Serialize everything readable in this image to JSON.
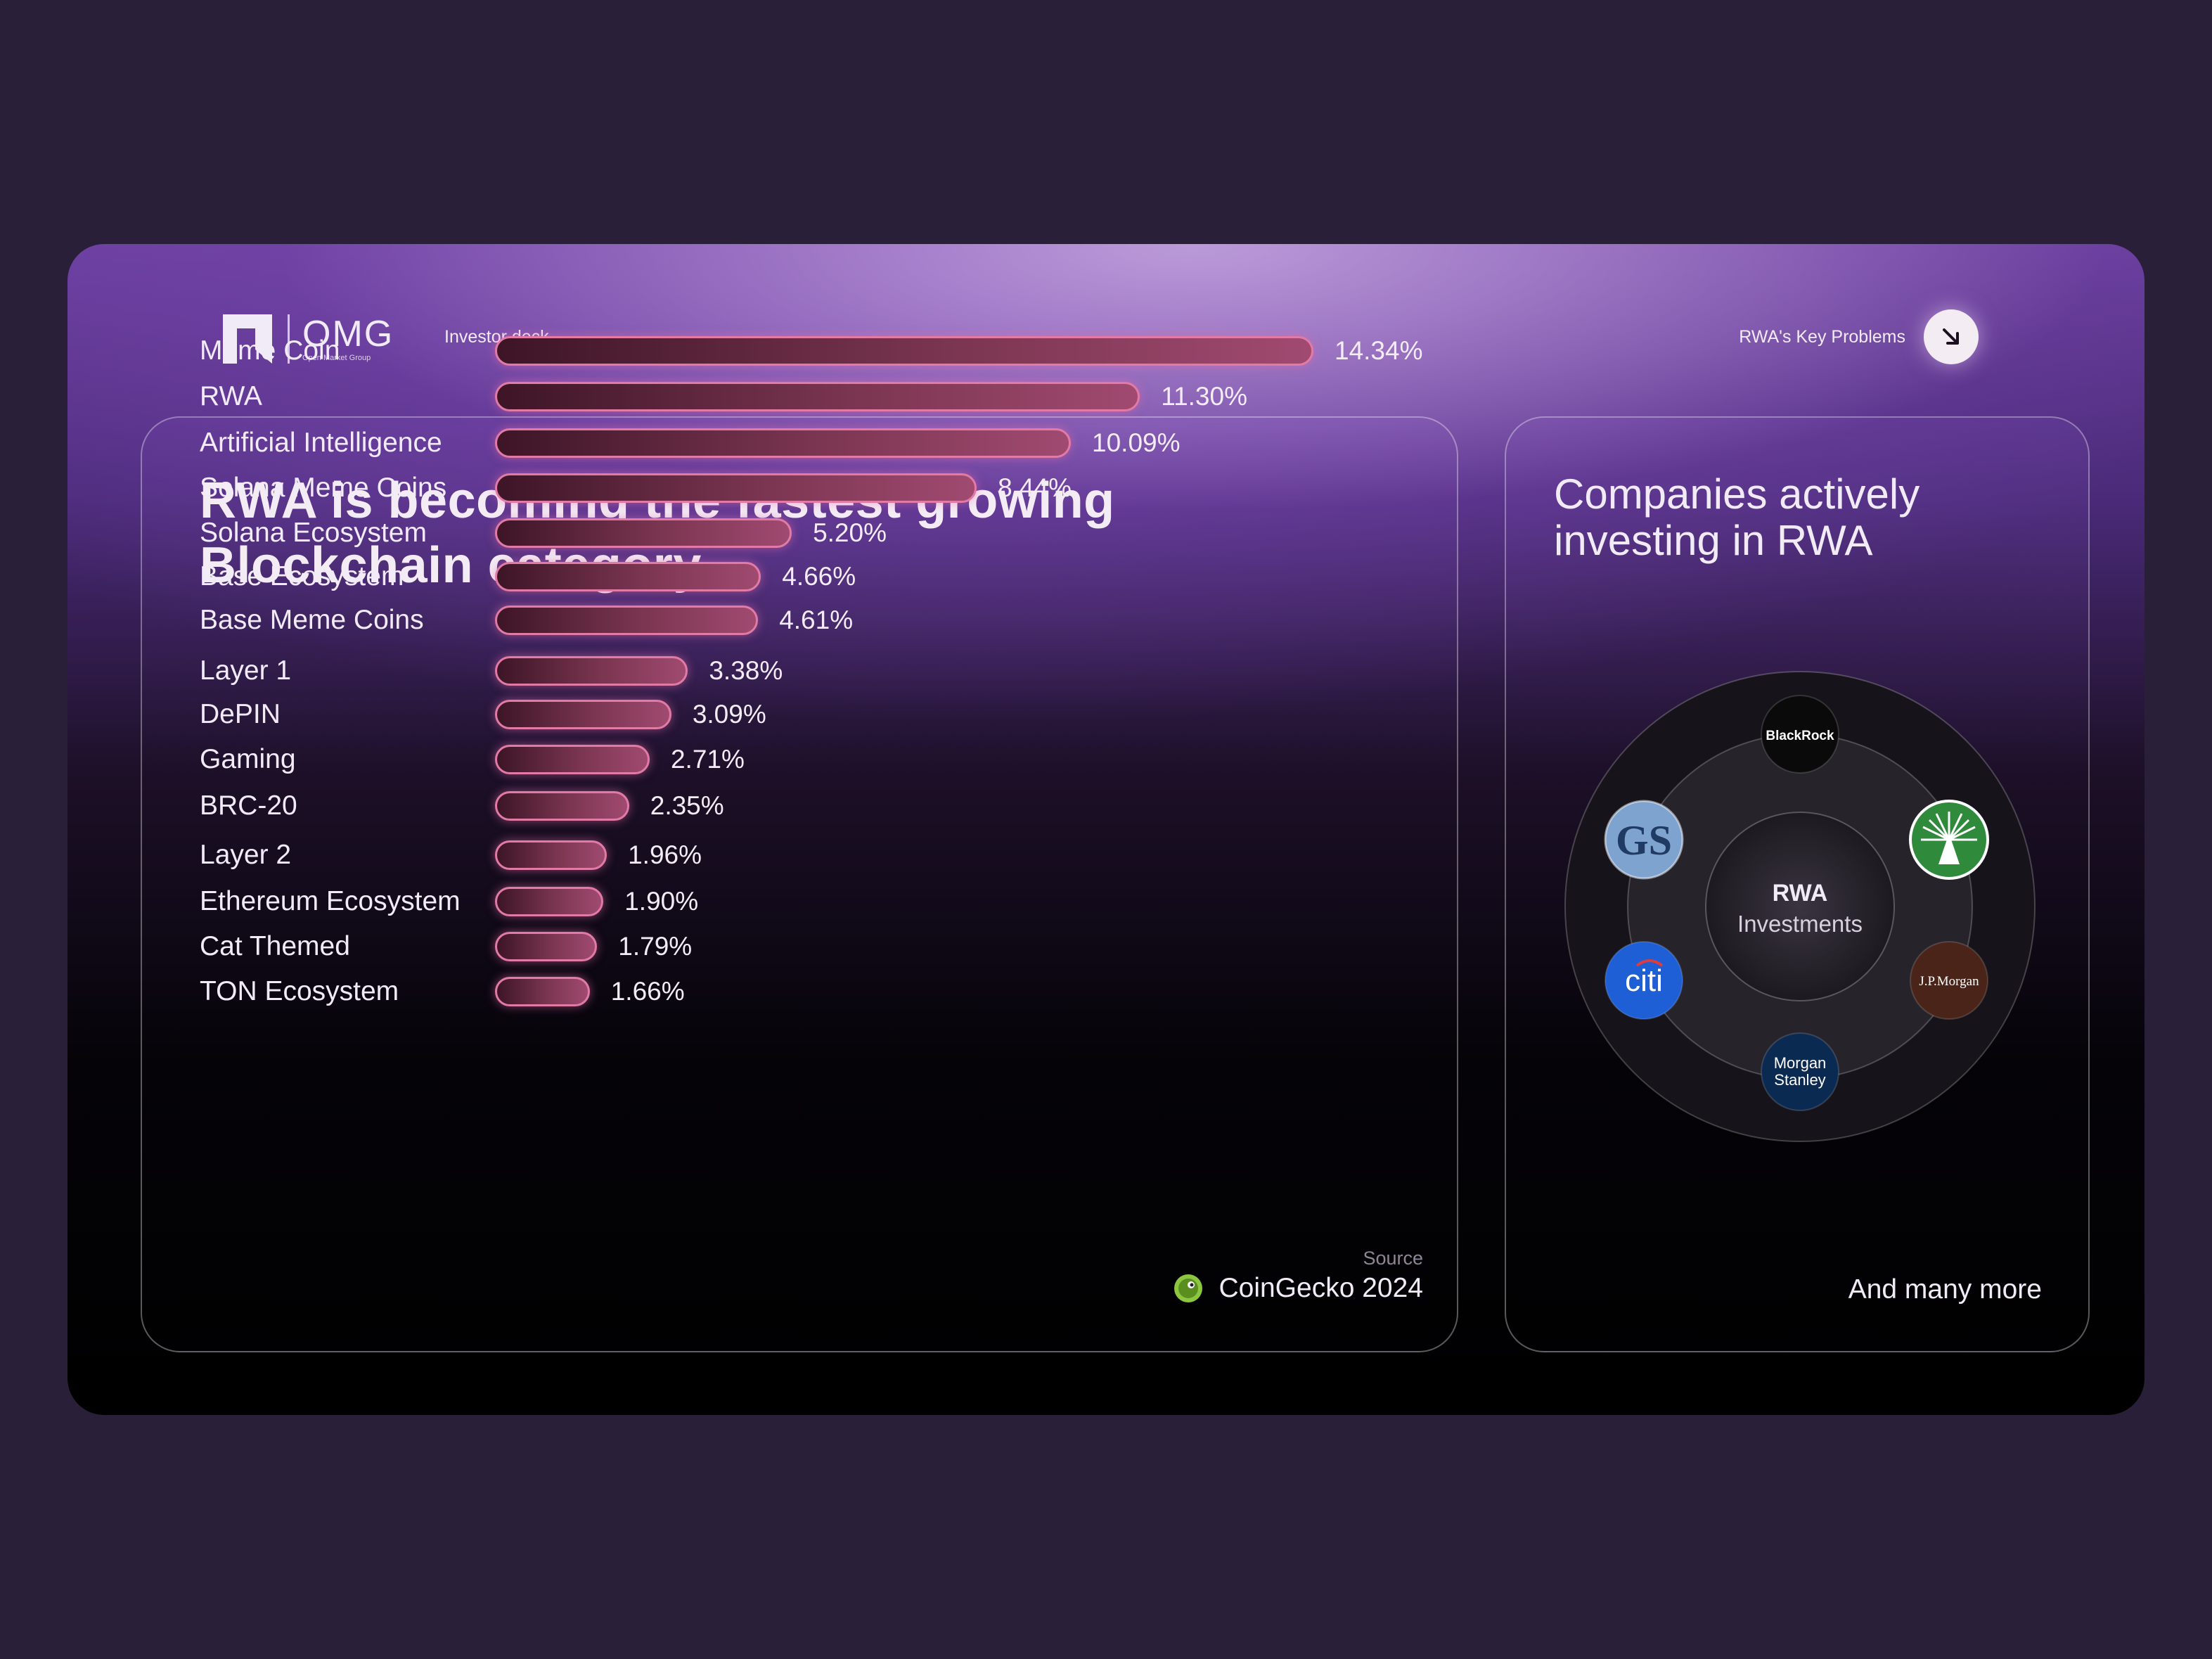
{
  "header": {
    "logo_word": "OMG",
    "logo_sub": "Open Market Group",
    "deck_label": "Investor deck",
    "nav_label": "RWA's Key Problems",
    "nav_icon": "arrow-down-right-icon"
  },
  "chart_data": {
    "type": "bar",
    "orientation": "horizontal",
    "title": "RWA is becoming the fastest growing Blockchain category.",
    "categories": [
      "Meme Coin",
      "RWA",
      "Artificial Intelligence",
      "Solana Meme Coins",
      "Solana Ecosystem",
      "Base Ecosystem",
      "Base Meme Coins",
      "Layer 1",
      "DePIN",
      "Gaming",
      "BRC-20",
      "Layer 2",
      "Ethereum Ecosystem",
      "Cat Themed",
      "TON Ecosystem"
    ],
    "values": [
      14.34,
      11.3,
      10.09,
      8.44,
      5.2,
      4.66,
      4.61,
      3.38,
      3.09,
      2.71,
      2.35,
      1.96,
      1.9,
      1.79,
      1.66
    ],
    "value_labels": [
      "14.34%",
      "11.30%",
      "10.09%",
      "8.44%",
      "5.20%",
      "4.66%",
      "4.61%",
      "3.38%",
      "3.09%",
      "2.71%",
      "2.35%",
      "1.96%",
      "1.90%",
      "1.79%",
      "1.66%"
    ],
    "unit": "%",
    "grid": false,
    "legend": "none",
    "bar_color": "#e27aa6",
    "source_label": "Source",
    "source": "CoinGecko 2024"
  },
  "companies": {
    "title": "Companies actively investing in RWA",
    "center_title": "RWA",
    "center_sub": "Investments",
    "items": [
      {
        "name": "BlackRock",
        "label": "BlackRock",
        "color": "#0a0a0a"
      },
      {
        "name": "Fidelity",
        "label": "",
        "color": "#2f8a3c"
      },
      {
        "name": "J.P.Morgan",
        "label": "J.P.Morgan",
        "color": "#4a2418"
      },
      {
        "name": "Morgan Stanley",
        "label": "Morgan Stanley",
        "color": "#0b2a52"
      },
      {
        "name": "Citi",
        "label": "citi",
        "color": "#1f5fd6"
      },
      {
        "name": "Goldman Sachs",
        "label": "GS",
        "color": "#7fa3cf"
      }
    ],
    "more": "And many more"
  }
}
